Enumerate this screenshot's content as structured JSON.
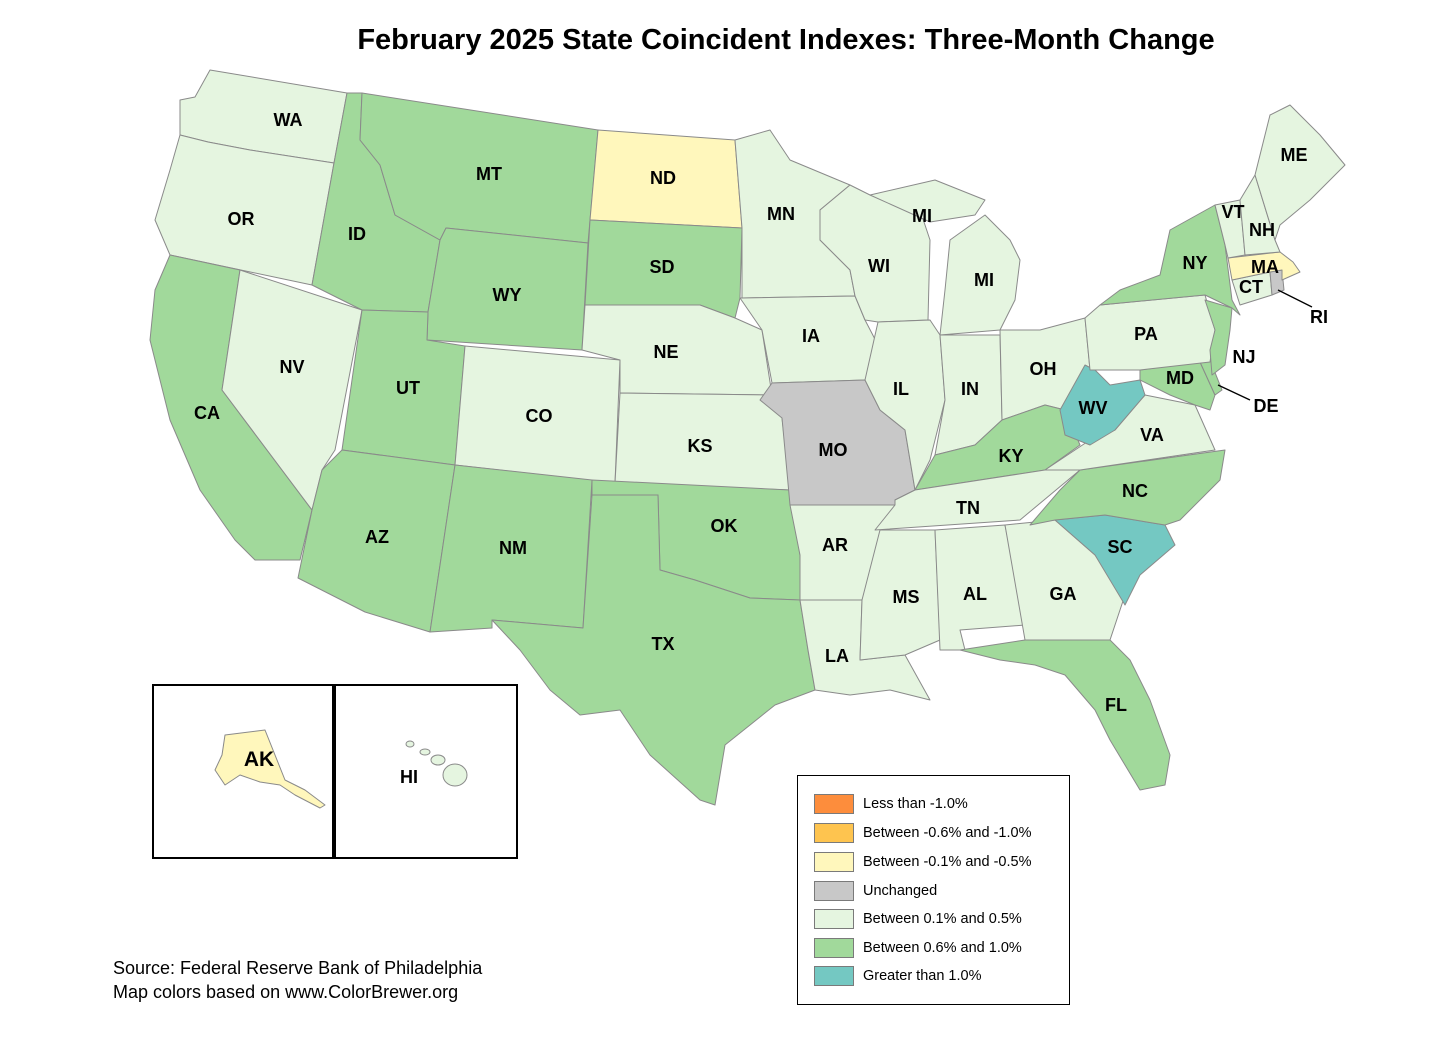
{
  "title": "February 2025 State Coincident Indexes: Three-Month Change",
  "colors": {
    "less_than_neg1": "#fd8d3c",
    "neg06_to_neg1": "#fec44f",
    "neg01_to_neg05": "#fff7bc",
    "unchanged": "#c8c8c8",
    "pos01_to_05": "#e5f5e0",
    "pos06_to_10": "#a1d99b",
    "greater_than_1": "#74c8c2"
  },
  "legend": [
    {
      "label": "Less than -1.0%",
      "category": "less_than_neg1"
    },
    {
      "label": "Between -0.6% and -1.0%",
      "category": "neg06_to_neg1"
    },
    {
      "label": "Between -0.1% and -0.5%",
      "category": "neg01_to_neg05"
    },
    {
      "label": "Unchanged",
      "category": "unchanged"
    },
    {
      "label": "Between 0.1% and 0.5%",
      "category": "pos01_to_05"
    },
    {
      "label": "Between 0.6% and 1.0%",
      "category": "pos06_to_10"
    },
    {
      "label": "Greater than 1.0%",
      "category": "greater_than_1"
    }
  ],
  "states": {
    "WA": "pos01_to_05",
    "OR": "pos01_to_05",
    "CA": "pos06_to_10",
    "ID": "pos06_to_10",
    "NV": "pos01_to_05",
    "MT": "pos06_to_10",
    "WY": "pos06_to_10",
    "UT": "pos06_to_10",
    "AZ": "pos06_to_10",
    "CO": "pos01_to_05",
    "NM": "pos06_to_10",
    "ND": "neg01_to_neg05",
    "SD": "pos06_to_10",
    "NE": "pos01_to_05",
    "KS": "pos01_to_05",
    "OK": "pos06_to_10",
    "TX": "pos06_to_10",
    "MN": "pos01_to_05",
    "IA": "pos01_to_05",
    "MO": "unchanged",
    "AR": "pos01_to_05",
    "LA": "pos01_to_05",
    "WI": "pos01_to_05",
    "MI": "pos01_to_05",
    "IL": "pos01_to_05",
    "IN": "pos01_to_05",
    "OH": "pos01_to_05",
    "KY": "pos06_to_10",
    "TN": "pos01_to_05",
    "MS": "pos01_to_05",
    "AL": "pos01_to_05",
    "GA": "pos01_to_05",
    "FL": "pos06_to_10",
    "SC": "greater_than_1",
    "NC": "pos06_to_10",
    "VA": "pos01_to_05",
    "WV": "greater_than_1",
    "MD": "pos06_to_10",
    "DE": "pos06_to_10",
    "PA": "pos01_to_05",
    "NJ": "pos06_to_10",
    "NY": "pos06_to_10",
    "CT": "pos01_to_05",
    "RI": "unchanged",
    "MA": "neg01_to_neg05",
    "VT": "pos01_to_05",
    "NH": "pos01_to_05",
    "ME": "pos01_to_05",
    "AK": "neg01_to_neg05",
    "HI": "pos01_to_05"
  },
  "labels": {
    "WA": "WA",
    "OR": "OR",
    "CA": "CA",
    "ID": "ID",
    "NV": "NV",
    "MT": "MT",
    "WY": "WY",
    "UT": "UT",
    "AZ": "AZ",
    "CO": "CO",
    "NM": "NM",
    "ND": "ND",
    "SD": "SD",
    "NE": "NE",
    "KS": "KS",
    "OK": "OK",
    "TX": "TX",
    "MN": "MN",
    "IA": "IA",
    "MO": "MO",
    "AR": "AR",
    "LA": "LA",
    "WI": "WI",
    "MI_UP": "MI",
    "MI": "MI",
    "IL": "IL",
    "IN": "IN",
    "OH": "OH",
    "KY": "KY",
    "TN": "TN",
    "MS": "MS",
    "AL": "AL",
    "GA": "GA",
    "FL": "FL",
    "SC": "SC",
    "NC": "NC",
    "VA": "VA",
    "WV": "WV",
    "MD": "MD",
    "DE": "DE",
    "PA": "PA",
    "NJ": "NJ",
    "NY": "NY",
    "CT": "CT",
    "RI": "RI",
    "MA": "MA",
    "VT": "VT",
    "NH": "NH",
    "ME": "ME",
    "AK": "AK",
    "HI": "HI"
  },
  "source": {
    "line1": "Source: Federal Reserve Bank of Philadelphia",
    "line2": "Map colors based on www.ColorBrewer.org"
  }
}
